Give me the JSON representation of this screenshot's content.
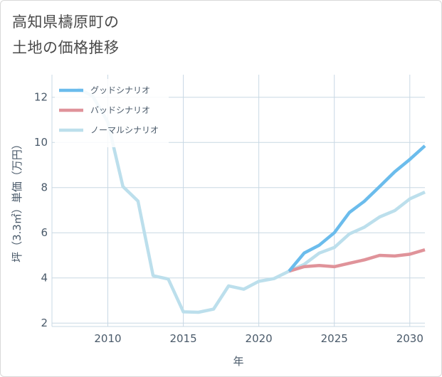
{
  "title": {
    "line1": "高知県檮原町の",
    "line2": "土地の価格推移"
  },
  "colors": {
    "good": "#6bbcec",
    "bad": "#e0939a",
    "normal": "#bcdfec",
    "grid": "#c8d8e4",
    "text": "#4a5a6a"
  },
  "chart_data": {
    "type": "line",
    "xlabel": "年",
    "ylabel": "坪（3.3㎡）単価（万円）",
    "xlim": [
      2006.3,
      2031
    ],
    "ylim": [
      1.85,
      13
    ],
    "xticks": [
      2010,
      2015,
      2020,
      2025,
      2030
    ],
    "yticks": [
      2,
      4,
      6,
      8,
      10,
      12
    ],
    "legend_position": "top-left",
    "series": [
      {
        "name": "グッドシナリオ",
        "color_key": "good",
        "x": [
          2022,
          2023,
          2024,
          2025,
          2026,
          2027,
          2028,
          2029,
          2030,
          2031
        ],
        "y": [
          4.3,
          5.1,
          5.45,
          6.0,
          6.9,
          7.4,
          8.05,
          8.7,
          9.25,
          9.85
        ]
      },
      {
        "name": "バッドシナリオ",
        "color_key": "bad",
        "x": [
          2022,
          2023,
          2024,
          2025,
          2026,
          2027,
          2028,
          2029,
          2030,
          2031
        ],
        "y": [
          4.3,
          4.5,
          4.55,
          4.5,
          4.65,
          4.8,
          5.0,
          4.97,
          5.05,
          5.25
        ]
      },
      {
        "name": "ノーマルシナリオ",
        "color_key": "normal",
        "x": [
          2008,
          2009,
          2010,
          2011,
          2012,
          2013,
          2014,
          2015,
          2016,
          2017,
          2018,
          2019,
          2020,
          2021,
          2022,
          2023,
          2024,
          2025,
          2026,
          2027,
          2028,
          2029,
          2030,
          2031
        ],
        "y": [
          12.4,
          12.05,
          10.9,
          8.05,
          7.4,
          4.1,
          3.95,
          2.5,
          2.48,
          2.62,
          3.65,
          3.5,
          3.85,
          3.97,
          4.3,
          4.6,
          5.1,
          5.35,
          5.95,
          6.25,
          6.7,
          6.98,
          7.5,
          7.8
        ]
      }
    ]
  }
}
